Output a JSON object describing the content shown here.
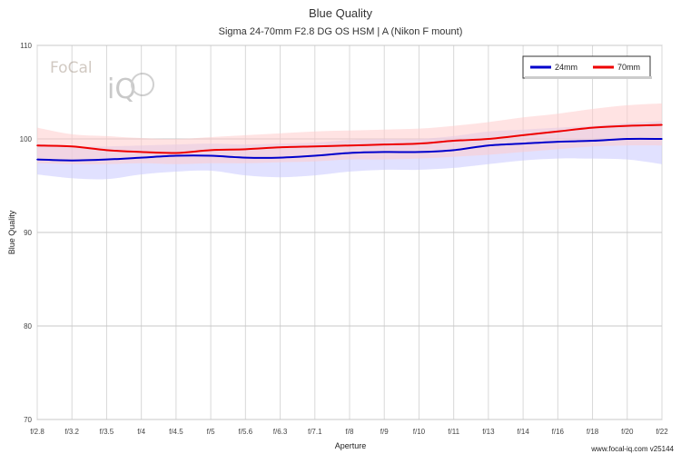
{
  "chart_data": {
    "type": "line",
    "title": "Blue Quality",
    "subtitle": "Sigma 24-70mm F2.8 DG OS HSM | A (Nikon F mount)",
    "xlabel": "Aperture",
    "ylabel": "Blue Quality",
    "categories": [
      "f/2.8",
      "f/3.2",
      "f/3.5",
      "f/4",
      "f/4.5",
      "f/5",
      "f/5.6",
      "f/6.3",
      "f/7.1",
      "f/8",
      "f/9",
      "f/10",
      "f/11",
      "f/13",
      "f/14",
      "f/16",
      "f/18",
      "f/20",
      "f/22"
    ],
    "ylim": [
      70,
      110
    ],
    "yticks": [
      70,
      80,
      90,
      100,
      110
    ],
    "grid": true,
    "legend_position": "top-right",
    "series": [
      {
        "name": "24mm",
        "color": "#0000cc",
        "band_color": "#c8c8ff",
        "values": [
          97.8,
          97.7,
          97.8,
          98.0,
          98.2,
          98.2,
          98.0,
          98.0,
          98.2,
          98.5,
          98.6,
          98.6,
          98.8,
          99.3,
          99.5,
          99.7,
          99.8,
          100.0,
          100.0
        ],
        "band_upper": [
          99.5,
          99.2,
          99.2,
          99.3,
          99.4,
          99.5,
          99.4,
          99.5,
          99.6,
          99.9,
          100.0,
          100.0,
          100.3,
          100.8,
          101.0,
          101.2,
          101.4,
          101.7,
          101.9
        ],
        "band_lower": [
          96.2,
          95.8,
          95.7,
          96.2,
          96.5,
          96.6,
          96.1,
          95.9,
          96.1,
          96.5,
          96.7,
          96.7,
          96.9,
          97.3,
          97.7,
          97.9,
          97.9,
          97.8,
          97.3
        ]
      },
      {
        "name": "70mm",
        "color": "#ee0000",
        "band_color": "#ffcccc",
        "values": [
          99.3,
          99.2,
          98.8,
          98.6,
          98.5,
          98.8,
          98.9,
          99.1,
          99.2,
          99.3,
          99.4,
          99.5,
          99.8,
          100.0,
          100.4,
          100.8,
          101.2,
          101.4,
          101.5
        ],
        "band_upper": [
          101.2,
          100.5,
          100.3,
          100.1,
          100.0,
          100.2,
          100.4,
          100.6,
          100.8,
          100.9,
          101.0,
          101.1,
          101.4,
          101.8,
          102.3,
          102.7,
          103.2,
          103.6,
          103.8
        ],
        "band_lower": [
          97.4,
          97.3,
          97.3,
          97.4,
          97.3,
          97.4,
          97.4,
          97.5,
          97.6,
          97.8,
          97.8,
          97.9,
          98.1,
          98.3,
          98.6,
          98.9,
          99.2,
          99.3,
          99.3
        ]
      }
    ]
  },
  "logo": {
    "line1": "FoCal",
    "line2": "iQ"
  },
  "footer": {
    "text": "www.focal-iq.com v25144"
  }
}
